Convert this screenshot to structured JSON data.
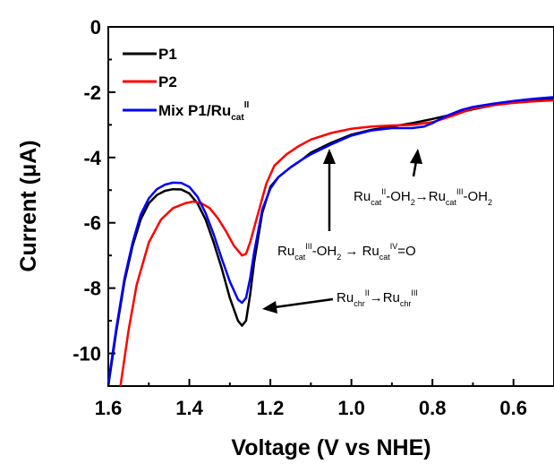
{
  "chart_data": {
    "type": "line",
    "xlabel": "Voltage (V vs NHE)",
    "ylabel": "Current (μA)",
    "xlim": [
      1.6,
      0.5
    ],
    "ylim": [
      -11,
      0
    ],
    "x_ticks": [
      "1.6",
      "1.4",
      "1.2",
      "1.0",
      "0.8",
      "0.6"
    ],
    "y_ticks": [
      "0",
      "-2",
      "-4",
      "-6",
      "-8",
      "-10"
    ],
    "grid": false,
    "legend_position": "top-left",
    "legend": [
      {
        "label": "P1",
        "sup": ""
      },
      {
        "label": "P2",
        "sup": ""
      },
      {
        "label": "Mix P1/Ru",
        "sub": "cat",
        "sup": "II"
      }
    ],
    "series": [
      {
        "name": "P1",
        "color": "#000000",
        "points": [
          [
            1.6,
            -11.0
          ],
          [
            1.58,
            -9.3
          ],
          [
            1.56,
            -7.8
          ],
          [
            1.54,
            -6.7
          ],
          [
            1.52,
            -5.9
          ],
          [
            1.5,
            -5.4
          ],
          [
            1.48,
            -5.15
          ],
          [
            1.46,
            -5.02
          ],
          [
            1.44,
            -4.97
          ],
          [
            1.42,
            -4.98
          ],
          [
            1.4,
            -5.1
          ],
          [
            1.38,
            -5.4
          ],
          [
            1.36,
            -5.9
          ],
          [
            1.34,
            -6.6
          ],
          [
            1.32,
            -7.4
          ],
          [
            1.3,
            -8.3
          ],
          [
            1.28,
            -9.0
          ],
          [
            1.27,
            -9.15
          ],
          [
            1.26,
            -9.0
          ],
          [
            1.25,
            -8.2
          ],
          [
            1.24,
            -7.2
          ],
          [
            1.22,
            -5.7
          ],
          [
            1.2,
            -4.9
          ],
          [
            1.18,
            -4.6
          ],
          [
            1.15,
            -4.3
          ],
          [
            1.12,
            -4.05
          ],
          [
            1.1,
            -3.85
          ],
          [
            1.05,
            -3.55
          ],
          [
            1.0,
            -3.3
          ],
          [
            0.95,
            -3.15
          ],
          [
            0.9,
            -3.05
          ],
          [
            0.85,
            -2.95
          ],
          [
            0.8,
            -2.82
          ],
          [
            0.75,
            -2.68
          ],
          [
            0.7,
            -2.52
          ],
          [
            0.65,
            -2.4
          ],
          [
            0.6,
            -2.3
          ],
          [
            0.55,
            -2.22
          ],
          [
            0.5,
            -2.18
          ]
        ]
      },
      {
        "name": "P2",
        "color": "#ff0000",
        "points": [
          [
            1.57,
            -11.0
          ],
          [
            1.55,
            -9.3
          ],
          [
            1.53,
            -7.9
          ],
          [
            1.5,
            -6.6
          ],
          [
            1.47,
            -5.9
          ],
          [
            1.44,
            -5.55
          ],
          [
            1.41,
            -5.4
          ],
          [
            1.39,
            -5.35
          ],
          [
            1.37,
            -5.4
          ],
          [
            1.35,
            -5.55
          ],
          [
            1.33,
            -5.85
          ],
          [
            1.31,
            -6.25
          ],
          [
            1.29,
            -6.7
          ],
          [
            1.27,
            -7.0
          ],
          [
            1.26,
            -6.95
          ],
          [
            1.25,
            -6.6
          ],
          [
            1.23,
            -5.7
          ],
          [
            1.21,
            -4.8
          ],
          [
            1.19,
            -4.25
          ],
          [
            1.16,
            -3.9
          ],
          [
            1.13,
            -3.65
          ],
          [
            1.1,
            -3.45
          ],
          [
            1.05,
            -3.25
          ],
          [
            1.0,
            -3.12
          ],
          [
            0.95,
            -3.05
          ],
          [
            0.9,
            -3.02
          ],
          [
            0.85,
            -3.0
          ],
          [
            0.8,
            -2.92
          ],
          [
            0.75,
            -2.72
          ],
          [
            0.7,
            -2.5
          ],
          [
            0.65,
            -2.4
          ],
          [
            0.6,
            -2.33
          ],
          [
            0.55,
            -2.28
          ],
          [
            0.5,
            -2.25
          ]
        ]
      },
      {
        "name": "Mix P1/Ru cat II",
        "color": "#0000ff",
        "points": [
          [
            1.6,
            -10.9
          ],
          [
            1.58,
            -9.2
          ],
          [
            1.56,
            -7.7
          ],
          [
            1.54,
            -6.6
          ],
          [
            1.52,
            -5.75
          ],
          [
            1.5,
            -5.25
          ],
          [
            1.48,
            -4.97
          ],
          [
            1.46,
            -4.83
          ],
          [
            1.44,
            -4.77
          ],
          [
            1.42,
            -4.78
          ],
          [
            1.4,
            -4.9
          ],
          [
            1.38,
            -5.2
          ],
          [
            1.36,
            -5.7
          ],
          [
            1.34,
            -6.35
          ],
          [
            1.32,
            -7.1
          ],
          [
            1.3,
            -7.8
          ],
          [
            1.28,
            -8.35
          ],
          [
            1.27,
            -8.45
          ],
          [
            1.26,
            -8.3
          ],
          [
            1.25,
            -7.7
          ],
          [
            1.24,
            -6.9
          ],
          [
            1.22,
            -5.6
          ],
          [
            1.2,
            -4.95
          ],
          [
            1.18,
            -4.6
          ],
          [
            1.15,
            -4.3
          ],
          [
            1.12,
            -4.05
          ],
          [
            1.1,
            -3.9
          ],
          [
            1.05,
            -3.6
          ],
          [
            1.0,
            -3.33
          ],
          [
            0.95,
            -3.17
          ],
          [
            0.9,
            -3.1
          ],
          [
            0.85,
            -3.1
          ],
          [
            0.82,
            -3.05
          ],
          [
            0.8,
            -2.95
          ],
          [
            0.77,
            -2.75
          ],
          [
            0.73,
            -2.55
          ],
          [
            0.7,
            -2.45
          ],
          [
            0.65,
            -2.35
          ],
          [
            0.6,
            -2.27
          ],
          [
            0.55,
            -2.2
          ],
          [
            0.5,
            -2.15
          ]
        ]
      }
    ],
    "annotations": [
      {
        "parts": [
          [
            "Ru",
            ""
          ],
          [
            "cat",
            "sub"
          ],
          [
            "II",
            "sup"
          ],
          [
            "-OH",
            ""
          ],
          [
            "2",
            "sub"
          ],
          [
            "→",
            ""
          ],
          [
            "Ru",
            ""
          ],
          [
            "cat",
            "sub"
          ],
          [
            "III",
            "sup"
          ],
          [
            "-OH",
            ""
          ],
          [
            "2",
            "sub"
          ]
        ]
      },
      {
        "parts": [
          [
            "Ru",
            ""
          ],
          [
            "cat",
            "sub"
          ],
          [
            "III",
            "sup"
          ],
          [
            "-OH",
            ""
          ],
          [
            "2",
            "sub"
          ],
          [
            " → ",
            ""
          ],
          [
            "Ru",
            ""
          ],
          [
            "cat",
            "sub"
          ],
          [
            "IV",
            "sup"
          ],
          [
            "=O",
            ""
          ]
        ]
      },
      {
        "parts": [
          [
            "Ru",
            ""
          ],
          [
            "chr",
            "sub"
          ],
          [
            "II",
            "sup"
          ],
          [
            "→",
            ""
          ],
          [
            "Ru",
            ""
          ],
          [
            "chr",
            "sub"
          ],
          [
            "III",
            "sup"
          ]
        ]
      }
    ]
  }
}
